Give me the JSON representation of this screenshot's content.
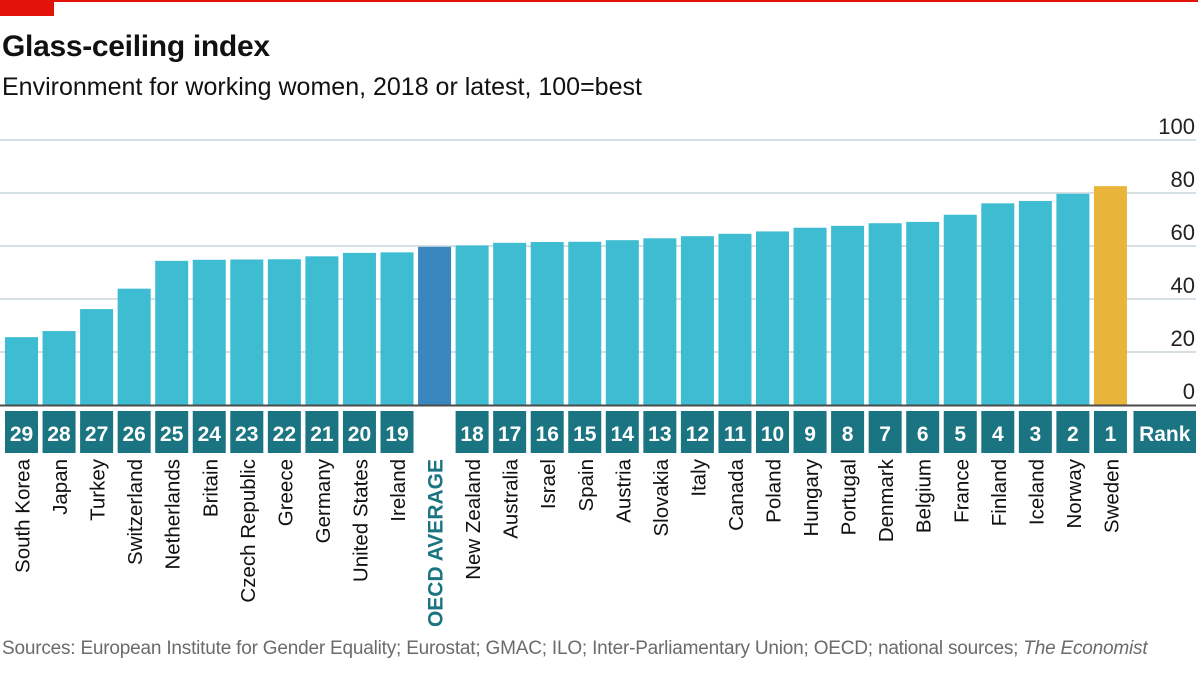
{
  "header": {
    "title": "Glass-ceiling index",
    "subtitle": "Environment for working women, 2018 or latest, 100=best"
  },
  "footer": {
    "source": "Sources: European Institute for Gender Equality; Eurostat; GMAC; ILO; Inter-Parliamentary Union; OECD; national sources;",
    "publication": "The Economist"
  },
  "theme": {
    "bar": "#3dbcd2",
    "average": "#3a87c0",
    "leader": "#e9b43a",
    "rank_box": "#1b7481",
    "average_label": "#1b7481",
    "grid": "#c9d5db",
    "axis": "#4b4b4b",
    "accent_red": "#e3120b"
  },
  "chart_data": {
    "type": "bar",
    "title": "Glass-ceiling index",
    "subtitle": "Environment for working women, 2018 or latest, 100=best",
    "categories": [
      "South Korea",
      "Japan",
      "Turkey",
      "Switzerland",
      "Netherlands",
      "Britain",
      "Czech Republic",
      "Greece",
      "Germany",
      "United States",
      "Ireland",
      "OECD AVERAGE",
      "New Zealand",
      "Australia",
      "Israel",
      "Spain",
      "Austria",
      "Slovakia",
      "Italy",
      "Canada",
      "Poland",
      "Hungary",
      "Portugal",
      "Denmark",
      "Belgium",
      "France",
      "Finland",
      "Iceland",
      "Norway",
      "Sweden"
    ],
    "values": [
      25.6,
      27.9,
      36.2,
      43.9,
      54.4,
      54.8,
      54.9,
      55.0,
      56.1,
      57.4,
      57.6,
      59.7,
      60.2,
      61.2,
      61.5,
      61.6,
      62.2,
      62.9,
      63.7,
      64.6,
      65.5,
      66.9,
      67.6,
      68.6,
      69.1,
      71.8,
      76.1,
      77.0,
      79.7,
      82.6
    ],
    "ranks": [
      "29",
      "28",
      "27",
      "26",
      "25",
      "24",
      "23",
      "22",
      "21",
      "20",
      "19",
      "",
      "18",
      "17",
      "16",
      "15",
      "14",
      "13",
      "12",
      "11",
      "10",
      "9",
      "8",
      "7",
      "6",
      "5",
      "4",
      "3",
      "2",
      "1"
    ],
    "rank_label": "Rank",
    "highlight_average": "OECD AVERAGE",
    "highlight_leader": "Sweden",
    "yticks": [
      0,
      20,
      40,
      60,
      80,
      100
    ],
    "ylim": [
      0,
      100
    ],
    "grid": true,
    "xlabel": "",
    "ylabel": ""
  }
}
